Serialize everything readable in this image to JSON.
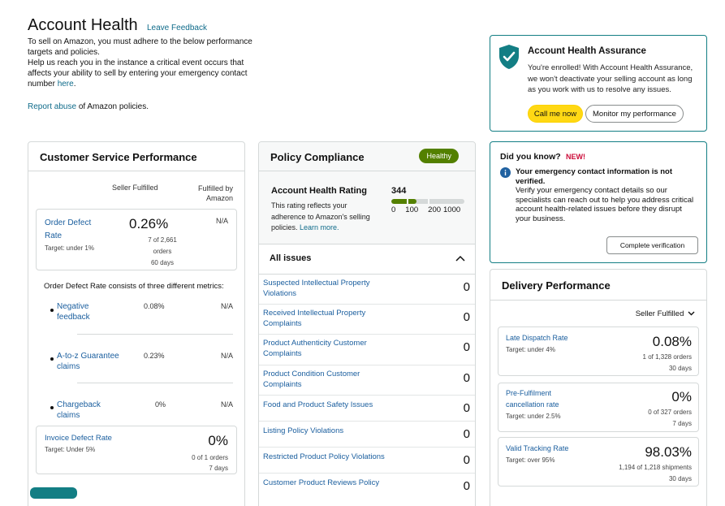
{
  "header": {
    "title": "Account Health",
    "feedback_link": "Leave Feedback",
    "intro_line1": "To sell on Amazon, you must adhere to the below performance",
    "intro_line2": "targets and policies.",
    "help_line1": "Help us reach you in the instance a critical event occurs that",
    "help_line2": "affects your ability to sell by entering your emergency contact",
    "help_line3_text": "number ",
    "help_here_link": "here",
    "help_period": ".",
    "report_link": "Report abuse",
    "report_rest": " of Amazon policies."
  },
  "assurance": {
    "title": "Account Health Assurance",
    "line1": "You're enrolled! With Account Health Assurance,",
    "line2": "we won't deactivate your selling account as long",
    "line3": "as you work with us to resolve any issues.",
    "call_button": "Call me now",
    "monitor_button": "Monitor my performance",
    "icon": "shield-check-icon",
    "accent": "#137e84"
  },
  "customer_service": {
    "title": "Customer Service Performance",
    "col_seller": "Seller Fulfilled",
    "col_amazon_1": "Fulfilled by",
    "col_amazon_2": "Amazon",
    "odr": {
      "label_1": "Order Defect",
      "label_2": "Rate",
      "target": "Target: under 1%",
      "value": "0.26%",
      "detail_1": "7 of 2,661",
      "detail_2": "orders",
      "detail_3": "60 days",
      "amazon_value": "N/A"
    },
    "metrics_intro": "Order Defect Rate consists of three different metrics:",
    "metrics": [
      {
        "label_1": "Negative",
        "label_2": "feedback",
        "seller": "0.08%",
        "amazon": "N/A"
      },
      {
        "label_1": "A-to-z Guarantee",
        "label_2": "claims",
        "seller": "0.23%",
        "amazon": "N/A"
      },
      {
        "label_1": "Chargeback",
        "label_2": "claims",
        "seller": "0%",
        "amazon": "N/A"
      }
    ],
    "idr": {
      "label": "Invoice Defect Rate",
      "target": "Target: Under 5%",
      "value": "0%",
      "detail_1": "0 of 1 orders",
      "detail_2": "7 days"
    }
  },
  "policy": {
    "title": "Policy Compliance",
    "badge": "Healthy",
    "badge_color": "#538000",
    "rating_title": "Account Health Rating",
    "rating_value": "344",
    "rating_desc_1": "This rating reflects your",
    "rating_desc_2": "adherence to Amazon's selling",
    "rating_desc_3_text": "policies. ",
    "rating_learn": "Learn more.",
    "scale": [
      "0",
      "100",
      "200",
      "1000"
    ],
    "rating_fraction": 0.344,
    "all_issues": "All issues",
    "issues": [
      {
        "label_1": "Suspected Intellectual Property",
        "label_2": "Violations",
        "value": "0"
      },
      {
        "label_1": "Received Intellectual Property",
        "label_2": "Complaints",
        "value": "0"
      },
      {
        "label_1": "Product Authenticity Customer",
        "label_2": "Complaints",
        "value": "0"
      },
      {
        "label_1": "Product Condition Customer",
        "label_2": "Complaints",
        "value": "0"
      },
      {
        "label_1": "Food and Product Safety Issues",
        "label_2": "",
        "value": "0"
      },
      {
        "label_1": "Listing Policy Violations",
        "label_2": "",
        "value": "0"
      },
      {
        "label_1": "Restricted Product Policy Violations",
        "label_2": "",
        "value": "0"
      },
      {
        "label_1": "Customer Product Reviews Policy",
        "label_2": "",
        "value": "0"
      }
    ]
  },
  "did_you_know": {
    "title": "Did you know?",
    "new_badge": "NEW!",
    "bold_1": "Your emergency contact information is not",
    "bold_2": "verified.",
    "text_1": "Verify your emergency contact details so our",
    "text_2": "specialists can reach out to help you address critical",
    "text_3": "account health-related issues before they disrupt",
    "text_4": "your business.",
    "button": "Complete verification"
  },
  "delivery": {
    "title": "Delivery Performance",
    "filter": "Seller Fulfilled",
    "metrics": [
      {
        "label_1": "Late Dispatch Rate",
        "label_2": "",
        "target": "Target: under 4%",
        "value": "0.08%",
        "detail_1": "1 of 1,328 orders",
        "detail_2": "30 days"
      },
      {
        "label_1": "Pre-Fulfilment",
        "label_2": "cancellation rate",
        "target": "Target: under 2.5%",
        "value": "0%",
        "detail_1": "0 of 327 orders",
        "detail_2": "7 days"
      },
      {
        "label_1": "Valid Tracking Rate",
        "label_2": "",
        "target": "Target: over 95%",
        "value": "98.03%",
        "detail_1": "1,194 of 1,218 shipments",
        "detail_2": "30 days"
      }
    ]
  }
}
